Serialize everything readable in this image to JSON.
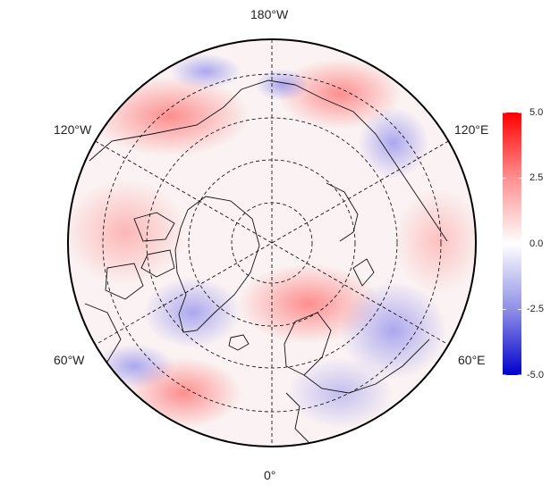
{
  "map": {
    "projection": "north-polar-stereographic",
    "graticule": "dashed",
    "fill_description": "anomaly field, diverging blue-white-red"
  },
  "longitude_labels": {
    "top": "180°W",
    "bottom": "0°",
    "upper_left": "120°W",
    "upper_right": "120°E",
    "lower_left": "60°W",
    "lower_right": "60°E"
  },
  "colorbar": {
    "ticks": [
      "5.0",
      "2.5",
      "0.0",
      "-2.5",
      "-5.0"
    ],
    "min": -5.0,
    "max": 5.0,
    "colors": {
      "high": "#ff0000",
      "mid": "#ffffff",
      "low": "#0000cc"
    }
  }
}
